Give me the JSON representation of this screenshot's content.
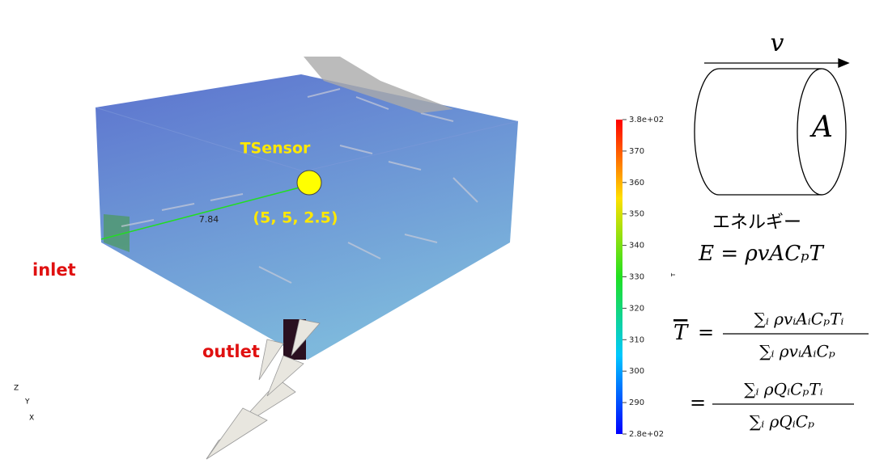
{
  "scene": {
    "sensor_label": "TSensor",
    "sensor_coords": "(5, 5, 2.5)",
    "inlet": "inlet",
    "outlet": "outlet",
    "line_value": "7.84",
    "axes": {
      "z": "Z",
      "y": "Y",
      "x": "X"
    }
  },
  "colorbar": {
    "title": "T",
    "min": 280,
    "max": 380,
    "ticks": [
      {
        "value": 380,
        "label": "3.8e+02"
      },
      370,
      360,
      350,
      340,
      330,
      320,
      310,
      300,
      290,
      {
        "value": 280,
        "label": "2.8e+02"
      }
    ]
  },
  "diagram": {
    "velocity": "v",
    "area": "A",
    "energy_label": "エネルギー"
  },
  "formulas": {
    "energy": "E = ρvACₚT",
    "mean_symbol": "T",
    "equals": "=",
    "num1": "∑ᵢ ρvᵢAᵢCₚTᵢ",
    "den1": "∑ᵢ ρvᵢAᵢCₚ",
    "num2": "∑ᵢ ρQᵢCₚTᵢ",
    "den2": "∑ᵢ ρQᵢCₚ"
  }
}
